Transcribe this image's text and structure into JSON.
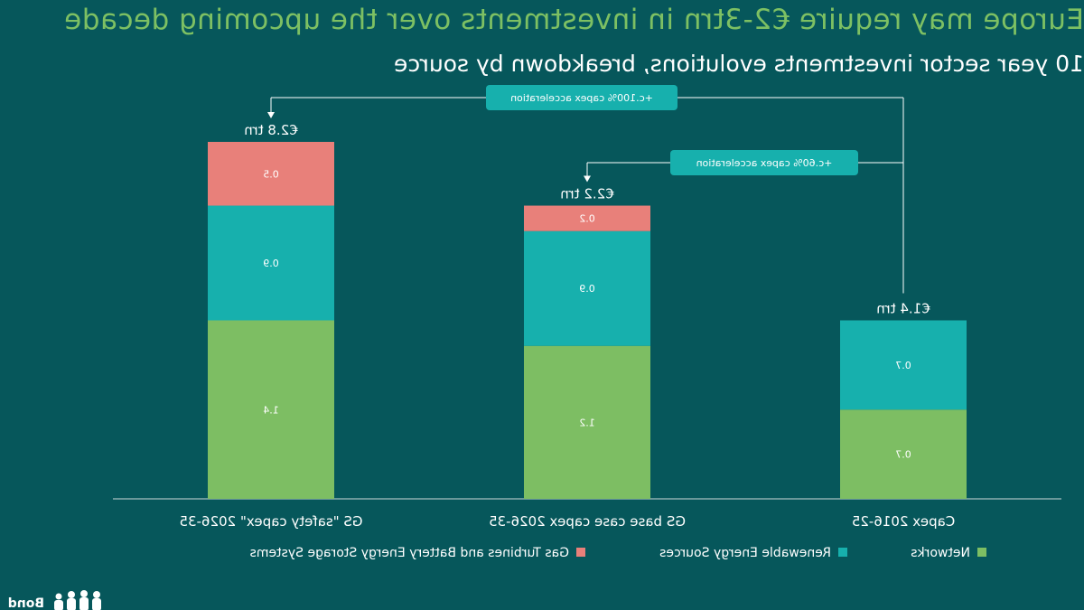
{
  "title": "Europe may require €2-3trn in investments over the upcoming decade",
  "subtitle": "10 year sector investments evolutions, breakdown by source",
  "logo_text": "Bond",
  "colors": {
    "background": "#06575b",
    "networks": "#7dbe63",
    "renewables": "#17b0ad",
    "gas": "#e8807a",
    "callout": "#17b0ad"
  },
  "chart_data": {
    "type": "bar",
    "stacked": true,
    "categories": [
      "Capex 2016-25",
      "GS base case capex 2026-35",
      "GS \"safety capex\" 2026-35"
    ],
    "series": [
      {
        "name": "Networks",
        "values": [
          0.7,
          1.2,
          1.4
        ]
      },
      {
        "name": "Renewable Energy Sources",
        "values": [
          0.7,
          0.9,
          0.9
        ]
      },
      {
        "name": "Gas Turbines and Battery Energy Storage Systems",
        "values": [
          null,
          0.2,
          0.5
        ]
      }
    ],
    "data_labels": [
      [
        "0.7",
        "1.2",
        "1.4"
      ],
      [
        "0.7",
        "0.9",
        "0.9"
      ],
      [
        "",
        "0.2",
        "0.5"
      ]
    ],
    "totals": [
      "€1.4 trn",
      "€2.2 trn",
      "€2.8 trn"
    ],
    "annotations": [
      {
        "text": "+c.60% capex acceleration",
        "from": 0,
        "to": 1
      },
      {
        "text": "+c.100% capex acceleration",
        "from": 0,
        "to": 2
      }
    ],
    "ylim": [
      0,
      2.8
    ],
    "legend_position": "bottom",
    "grid": false
  }
}
